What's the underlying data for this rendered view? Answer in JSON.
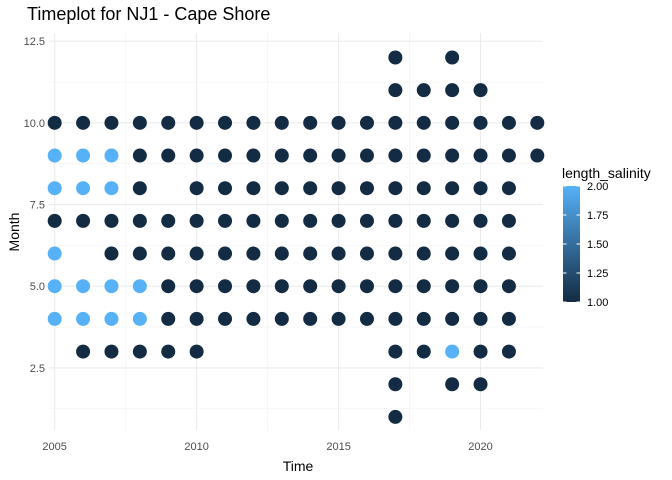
{
  "chart_data": {
    "type": "scatter",
    "title": "Timeplot for NJ1 - Cape Shore",
    "xlabel": "Time",
    "ylabel": "Month",
    "xlim": [
      2004.8,
      2022.2
    ],
    "ylim": [
      0.6,
      12.75
    ],
    "x_ticks": [
      2005,
      2010,
      2015,
      2020
    ],
    "x_tick_labels": [
      "2005",
      "2010",
      "2015",
      "2020"
    ],
    "y_ticks": [
      2.5,
      5.0,
      7.5,
      10.0,
      12.5
    ],
    "y_tick_labels": [
      "2.5",
      "5.0",
      "7.5",
      "10.0",
      "12.5"
    ],
    "grid": true,
    "color_variable": "length_salinity",
    "color_scale": {
      "low": 1.0,
      "high": 2.0,
      "low_color": "#132B43",
      "high_color": "#56B1F7",
      "ticks": [
        1.0,
        1.25,
        1.5,
        1.75,
        2.0
      ],
      "tick_labels": [
        "1.00",
        "1.25",
        "1.50",
        "1.75",
        "2.00"
      ]
    },
    "legend_position": "right",
    "points": [
      {
        "x": 2005,
        "y": 10,
        "c": 1
      },
      {
        "x": 2005,
        "y": 9,
        "c": 2
      },
      {
        "x": 2005,
        "y": 8,
        "c": 2
      },
      {
        "x": 2005,
        "y": 7,
        "c": 1
      },
      {
        "x": 2005,
        "y": 6,
        "c": 2
      },
      {
        "x": 2005,
        "y": 5,
        "c": 2
      },
      {
        "x": 2005,
        "y": 4,
        "c": 2
      },
      {
        "x": 2006,
        "y": 10,
        "c": 1
      },
      {
        "x": 2006,
        "y": 9,
        "c": 2
      },
      {
        "x": 2006,
        "y": 8,
        "c": 2
      },
      {
        "x": 2006,
        "y": 7,
        "c": 1
      },
      {
        "x": 2006,
        "y": 5,
        "c": 2
      },
      {
        "x": 2006,
        "y": 4,
        "c": 2
      },
      {
        "x": 2006,
        "y": 3,
        "c": 1
      },
      {
        "x": 2007,
        "y": 10,
        "c": 1
      },
      {
        "x": 2007,
        "y": 9,
        "c": 2
      },
      {
        "x": 2007,
        "y": 8,
        "c": 2
      },
      {
        "x": 2007,
        "y": 7,
        "c": 1
      },
      {
        "x": 2007,
        "y": 6,
        "c": 1
      },
      {
        "x": 2007,
        "y": 5,
        "c": 2
      },
      {
        "x": 2007,
        "y": 4,
        "c": 2
      },
      {
        "x": 2007,
        "y": 3,
        "c": 1
      },
      {
        "x": 2008,
        "y": 10,
        "c": 1
      },
      {
        "x": 2008,
        "y": 9,
        "c": 1
      },
      {
        "x": 2008,
        "y": 8,
        "c": 1
      },
      {
        "x": 2008,
        "y": 7,
        "c": 1
      },
      {
        "x": 2008,
        "y": 6,
        "c": 1
      },
      {
        "x": 2008,
        "y": 5,
        "c": 2
      },
      {
        "x": 2008,
        "y": 4,
        "c": 2
      },
      {
        "x": 2008,
        "y": 3,
        "c": 1
      },
      {
        "x": 2009,
        "y": 10,
        "c": 1
      },
      {
        "x": 2009,
        "y": 9,
        "c": 1
      },
      {
        "x": 2009,
        "y": 7,
        "c": 1
      },
      {
        "x": 2009,
        "y": 6,
        "c": 1
      },
      {
        "x": 2009,
        "y": 5,
        "c": 1
      },
      {
        "x": 2009,
        "y": 4,
        "c": 1
      },
      {
        "x": 2009,
        "y": 3,
        "c": 1
      },
      {
        "x": 2010,
        "y": 10,
        "c": 1
      },
      {
        "x": 2010,
        "y": 9,
        "c": 1
      },
      {
        "x": 2010,
        "y": 8,
        "c": 1
      },
      {
        "x": 2010,
        "y": 7,
        "c": 1
      },
      {
        "x": 2010,
        "y": 6,
        "c": 1
      },
      {
        "x": 2010,
        "y": 5,
        "c": 1
      },
      {
        "x": 2010,
        "y": 4,
        "c": 1
      },
      {
        "x": 2010,
        "y": 3,
        "c": 1
      },
      {
        "x": 2011,
        "y": 10,
        "c": 1
      },
      {
        "x": 2011,
        "y": 9,
        "c": 1
      },
      {
        "x": 2011,
        "y": 8,
        "c": 1
      },
      {
        "x": 2011,
        "y": 7,
        "c": 1
      },
      {
        "x": 2011,
        "y": 6,
        "c": 1
      },
      {
        "x": 2011,
        "y": 5,
        "c": 1
      },
      {
        "x": 2011,
        "y": 4,
        "c": 1
      },
      {
        "x": 2012,
        "y": 10,
        "c": 1
      },
      {
        "x": 2012,
        "y": 9,
        "c": 1
      },
      {
        "x": 2012,
        "y": 8,
        "c": 1
      },
      {
        "x": 2012,
        "y": 7,
        "c": 1
      },
      {
        "x": 2012,
        "y": 6,
        "c": 1
      },
      {
        "x": 2012,
        "y": 5,
        "c": 1
      },
      {
        "x": 2012,
        "y": 4,
        "c": 1
      },
      {
        "x": 2013,
        "y": 10,
        "c": 1
      },
      {
        "x": 2013,
        "y": 9,
        "c": 1
      },
      {
        "x": 2013,
        "y": 8,
        "c": 1
      },
      {
        "x": 2013,
        "y": 7,
        "c": 1
      },
      {
        "x": 2013,
        "y": 6,
        "c": 1
      },
      {
        "x": 2013,
        "y": 5,
        "c": 1
      },
      {
        "x": 2013,
        "y": 4,
        "c": 1
      },
      {
        "x": 2014,
        "y": 10,
        "c": 1
      },
      {
        "x": 2014,
        "y": 9,
        "c": 1
      },
      {
        "x": 2014,
        "y": 8,
        "c": 1
      },
      {
        "x": 2014,
        "y": 7,
        "c": 1
      },
      {
        "x": 2014,
        "y": 6,
        "c": 1
      },
      {
        "x": 2014,
        "y": 5,
        "c": 1
      },
      {
        "x": 2014,
        "y": 4,
        "c": 1
      },
      {
        "x": 2015,
        "y": 10,
        "c": 1
      },
      {
        "x": 2015,
        "y": 9,
        "c": 1
      },
      {
        "x": 2015,
        "y": 8,
        "c": 1
      },
      {
        "x": 2015,
        "y": 7,
        "c": 1
      },
      {
        "x": 2015,
        "y": 6,
        "c": 1
      },
      {
        "x": 2015,
        "y": 5,
        "c": 1
      },
      {
        "x": 2015,
        "y": 4,
        "c": 1
      },
      {
        "x": 2016,
        "y": 10,
        "c": 1
      },
      {
        "x": 2016,
        "y": 9,
        "c": 1
      },
      {
        "x": 2016,
        "y": 8,
        "c": 1
      },
      {
        "x": 2016,
        "y": 7,
        "c": 1
      },
      {
        "x": 2016,
        "y": 6,
        "c": 1
      },
      {
        "x": 2016,
        "y": 5,
        "c": 1
      },
      {
        "x": 2016,
        "y": 4,
        "c": 1
      },
      {
        "x": 2017,
        "y": 12,
        "c": 1
      },
      {
        "x": 2017,
        "y": 11,
        "c": 1
      },
      {
        "x": 2017,
        "y": 10,
        "c": 1
      },
      {
        "x": 2017,
        "y": 9,
        "c": 1
      },
      {
        "x": 2017,
        "y": 8,
        "c": 1
      },
      {
        "x": 2017,
        "y": 7,
        "c": 1
      },
      {
        "x": 2017,
        "y": 6,
        "c": 1
      },
      {
        "x": 2017,
        "y": 5,
        "c": 1
      },
      {
        "x": 2017,
        "y": 4,
        "c": 1
      },
      {
        "x": 2017,
        "y": 3,
        "c": 1
      },
      {
        "x": 2017,
        "y": 2,
        "c": 1
      },
      {
        "x": 2017,
        "y": 1,
        "c": 1
      },
      {
        "x": 2018,
        "y": 11,
        "c": 1
      },
      {
        "x": 2018,
        "y": 10,
        "c": 1
      },
      {
        "x": 2018,
        "y": 9,
        "c": 1
      },
      {
        "x": 2018,
        "y": 8,
        "c": 1
      },
      {
        "x": 2018,
        "y": 7,
        "c": 1
      },
      {
        "x": 2018,
        "y": 6,
        "c": 1
      },
      {
        "x": 2018,
        "y": 5,
        "c": 1
      },
      {
        "x": 2018,
        "y": 4,
        "c": 1
      },
      {
        "x": 2018,
        "y": 3,
        "c": 1
      },
      {
        "x": 2019,
        "y": 12,
        "c": 1
      },
      {
        "x": 2019,
        "y": 11,
        "c": 1
      },
      {
        "x": 2019,
        "y": 10,
        "c": 1
      },
      {
        "x": 2019,
        "y": 9,
        "c": 1
      },
      {
        "x": 2019,
        "y": 8,
        "c": 1
      },
      {
        "x": 2019,
        "y": 7,
        "c": 1
      },
      {
        "x": 2019,
        "y": 6,
        "c": 1
      },
      {
        "x": 2019,
        "y": 5,
        "c": 1
      },
      {
        "x": 2019,
        "y": 4,
        "c": 1
      },
      {
        "x": 2019,
        "y": 3,
        "c": 2
      },
      {
        "x": 2019,
        "y": 2,
        "c": 1
      },
      {
        "x": 2020,
        "y": 11,
        "c": 1
      },
      {
        "x": 2020,
        "y": 10,
        "c": 1
      },
      {
        "x": 2020,
        "y": 9,
        "c": 1
      },
      {
        "x": 2020,
        "y": 8,
        "c": 1
      },
      {
        "x": 2020,
        "y": 7,
        "c": 1
      },
      {
        "x": 2020,
        "y": 6,
        "c": 1
      },
      {
        "x": 2020,
        "y": 5,
        "c": 1
      },
      {
        "x": 2020,
        "y": 4,
        "c": 1
      },
      {
        "x": 2020,
        "y": 3,
        "c": 1
      },
      {
        "x": 2020,
        "y": 2,
        "c": 1
      },
      {
        "x": 2021,
        "y": 10,
        "c": 1
      },
      {
        "x": 2021,
        "y": 9,
        "c": 1
      },
      {
        "x": 2021,
        "y": 8,
        "c": 1
      },
      {
        "x": 2021,
        "y": 7,
        "c": 1
      },
      {
        "x": 2021,
        "y": 6,
        "c": 1
      },
      {
        "x": 2021,
        "y": 5,
        "c": 1
      },
      {
        "x": 2021,
        "y": 4,
        "c": 1
      },
      {
        "x": 2021,
        "y": 3,
        "c": 1
      },
      {
        "x": 2022,
        "y": 10,
        "c": 1
      },
      {
        "x": 2022,
        "y": 9,
        "c": 1
      }
    ]
  }
}
